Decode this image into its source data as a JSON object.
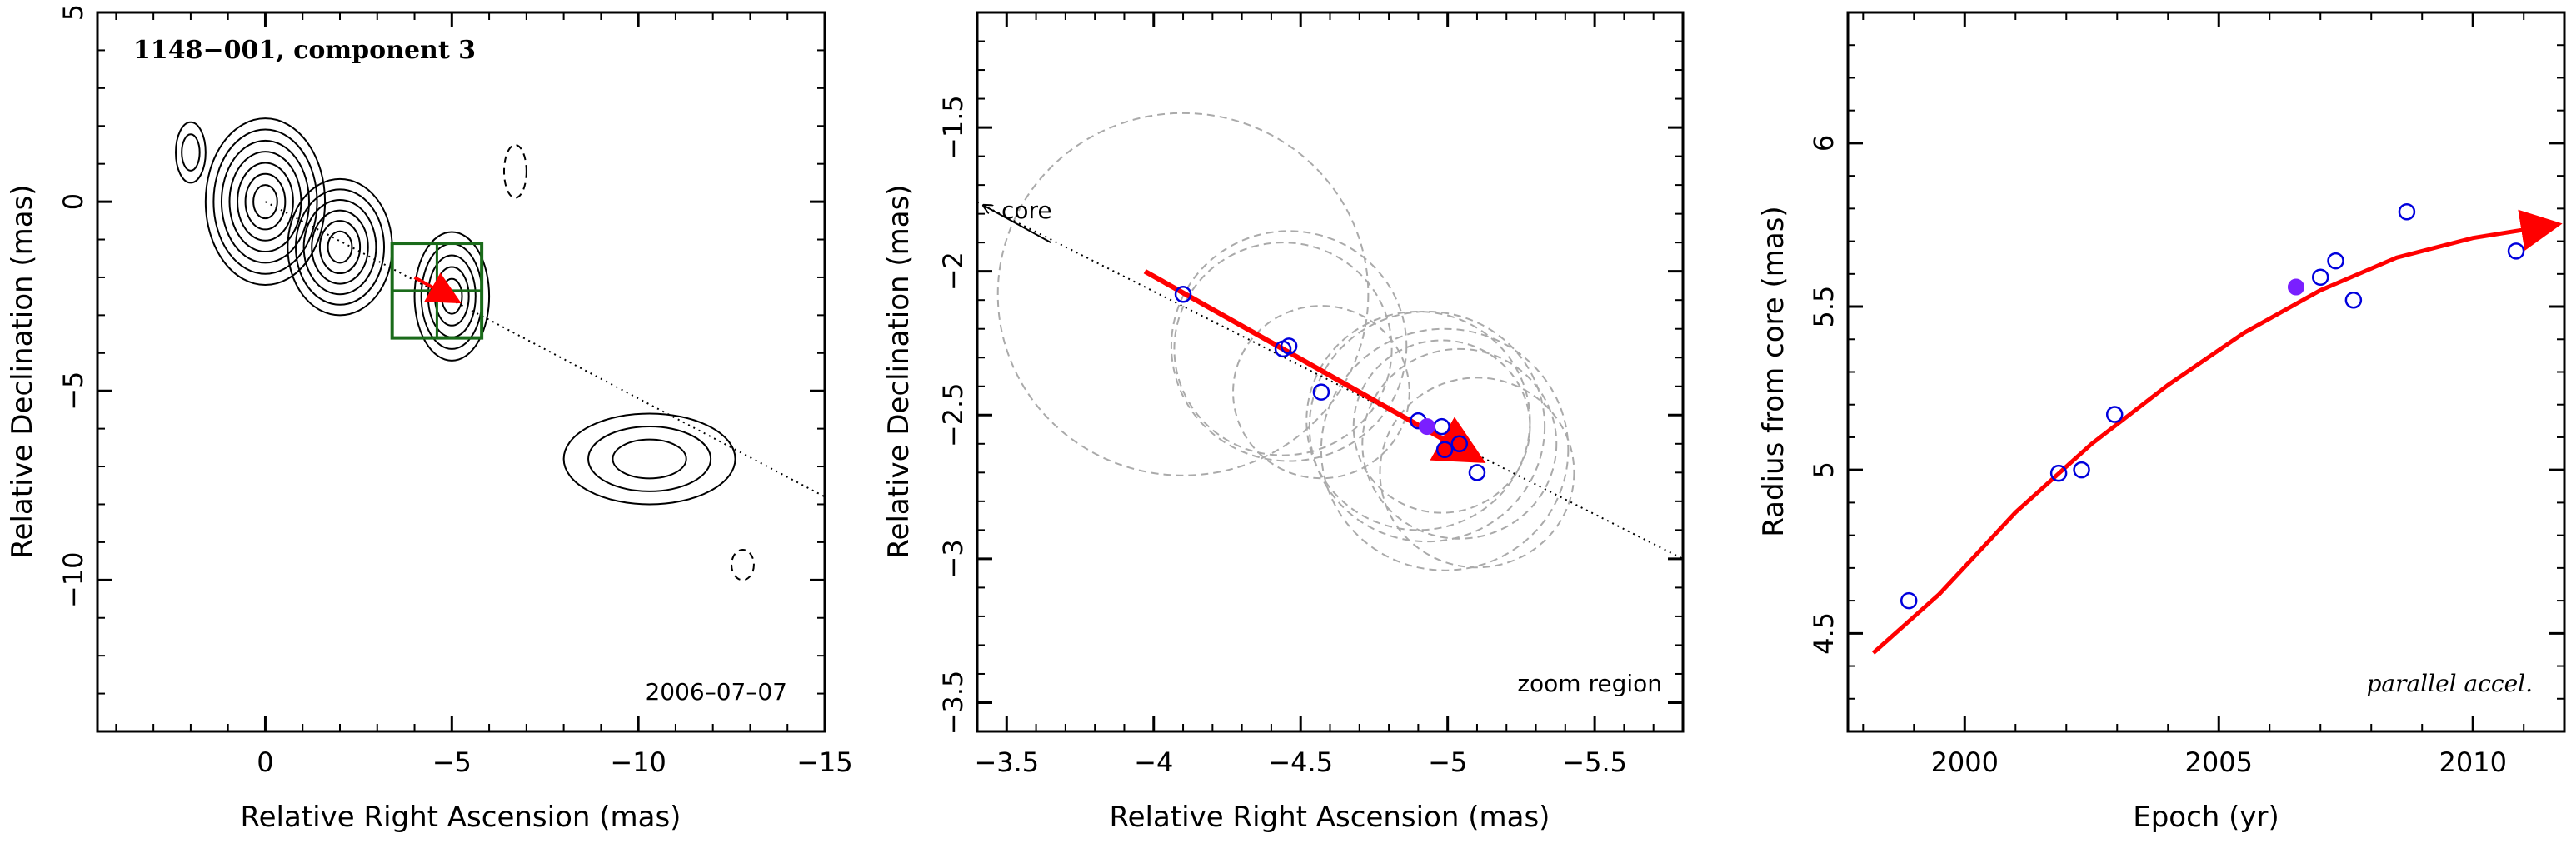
{
  "chart_data": [
    {
      "type": "contour",
      "title": "1148−001, component 3",
      "xlabel": "Relative Right Ascension (mas)",
      "ylabel": "Relative Declination (mas)",
      "xlim": [
        4.5,
        -15
      ],
      "ylim": [
        -14,
        5
      ],
      "xticks": [
        0,
        -5,
        -10,
        -15
      ],
      "yticks": [
        5,
        0,
        -5,
        -10
      ],
      "x_tick_labels": [
        "0",
        "−5",
        "−10",
        "−15"
      ],
      "y_tick_labels": [
        "5",
        "0",
        "−5",
        "−10"
      ],
      "annotations": [
        "2006–07–07"
      ],
      "contour_color": "#000000",
      "box_color": "#1a6b1a",
      "arrow_color": "#ff0000",
      "components": [
        {
          "x": 0,
          "y": 0,
          "rx": 1.6,
          "ry": 2.2,
          "levels": 7
        },
        {
          "x": -2,
          "y": -1.2,
          "rx": 1.4,
          "ry": 1.8,
          "levels": 6
        },
        {
          "x": -5,
          "y": -2.5,
          "rx": 1.0,
          "ry": 1.7,
          "levels": 5
        },
        {
          "x": 2.0,
          "y": 1.3,
          "rx": 0.4,
          "ry": 0.8,
          "levels": 2
        },
        {
          "x": -10.3,
          "y": -6.8,
          "rx": 2.3,
          "ry": 1.2,
          "levels": 3
        }
      ],
      "negative_contours": [
        {
          "x": -6.7,
          "y": 0.8,
          "rx": 0.3,
          "ry": 0.7
        },
        {
          "x": -12.8,
          "y": -9.6,
          "rx": 0.3,
          "ry": 0.4
        }
      ],
      "jet_direction": {
        "x1": 0,
        "y1": 0,
        "x2": -15,
        "y2": -7.8
      },
      "box": {
        "x": [
          -3.4,
          -5.8
        ],
        "y": [
          -1.1,
          -3.6
        ]
      },
      "motion_arrow": {
        "x1": -4,
        "y1": -2.0,
        "x2": -5.1,
        "y2": -2.6
      }
    },
    {
      "type": "scatter",
      "title": "",
      "xlabel": "Relative Right Ascension (mas)",
      "ylabel": "Relative Declination (mas)",
      "xlim": [
        -3.4,
        -5.8
      ],
      "ylim": [
        -3.6,
        -1.1
      ],
      "xticks": [
        -3.5,
        -4,
        -4.5,
        -5,
        -5.5
      ],
      "yticks": [
        -1.5,
        -2,
        -2.5,
        -3,
        -3.5
      ],
      "x_tick_labels": [
        "−3.5",
        "−4",
        "−4.5",
        "−5",
        "−5.5"
      ],
      "y_tick_labels": [
        "−1.5",
        "−2",
        "−2.5",
        "−3",
        "−3.5"
      ],
      "annotations": [
        "core",
        "zoom region"
      ],
      "point_color": "#0000dd",
      "highlight_color": "#7a1fff",
      "circle_color": "#aaaaaa",
      "arrow_color": "#ff0000",
      "points": [
        {
          "x": -4.1,
          "y": -2.08
        },
        {
          "x": -4.44,
          "y": -2.27
        },
        {
          "x": -4.46,
          "y": -2.26
        },
        {
          "x": -4.57,
          "y": -2.42
        },
        {
          "x": -4.9,
          "y": -2.52
        },
        {
          "x": -4.98,
          "y": -2.54
        },
        {
          "x": -4.99,
          "y": -2.62
        },
        {
          "x": -5.04,
          "y": -2.6
        },
        {
          "x": -5.1,
          "y": -2.7
        }
      ],
      "highlight_point": {
        "x": -4.93,
        "y": -2.54
      },
      "error_circles": [
        {
          "x": -4.1,
          "y": -2.08,
          "r": 0.63
        },
        {
          "x": -4.44,
          "y": -2.27,
          "r": 0.37
        },
        {
          "x": -4.46,
          "y": -2.26,
          "r": 0.4
        },
        {
          "x": -4.57,
          "y": -2.42,
          "r": 0.3
        },
        {
          "x": -4.9,
          "y": -2.52,
          "r": 0.38
        },
        {
          "x": -4.93,
          "y": -2.54,
          "r": 0.4
        },
        {
          "x": -4.98,
          "y": -2.54,
          "r": 0.3
        },
        {
          "x": -4.99,
          "y": -2.62,
          "r": 0.42
        },
        {
          "x": -5.04,
          "y": -2.6,
          "r": 0.33
        },
        {
          "x": -5.1,
          "y": -2.7,
          "r": 0.33
        }
      ],
      "jet_line": {
        "x1": -3.4,
        "y1": -1.76,
        "x2": -5.8,
        "y2": -3.0
      },
      "core_arrow": {
        "x1": -3.65,
        "y1": -1.9,
        "x2": -3.4,
        "y2": -1.76
      },
      "motion_arrow": {
        "x1": -3.97,
        "y1": -2.0,
        "x2": -5.1,
        "y2": -2.65
      }
    },
    {
      "type": "scatter",
      "title": "",
      "xlabel": "Epoch (yr)",
      "ylabel": "Radius from core (mas)",
      "xlim": [
        1997.7,
        2011.8
      ],
      "ylim": [
        4.2,
        6.4
      ],
      "xticks": [
        2000,
        2005,
        2010
      ],
      "yticks": [
        4.5,
        5,
        5.5,
        6
      ],
      "x_tick_labels": [
        "2000",
        "2005",
        "2010"
      ],
      "y_tick_labels": [
        "4.5",
        "5",
        "5.5",
        "6"
      ],
      "annotations": [
        "parallel accel."
      ],
      "point_color": "#0000dd",
      "highlight_color": "#7a1fff",
      "curve_color": "#ff0000",
      "points": [
        {
          "x": 1998.9,
          "y": 4.6
        },
        {
          "x": 2001.85,
          "y": 4.99
        },
        {
          "x": 2002.3,
          "y": 5.0
        },
        {
          "x": 2002.95,
          "y": 5.17
        },
        {
          "x": 2007.0,
          "y": 5.59
        },
        {
          "x": 2007.3,
          "y": 5.64
        },
        {
          "x": 2007.65,
          "y": 5.52
        },
        {
          "x": 2008.7,
          "y": 5.79
        },
        {
          "x": 2010.85,
          "y": 5.67
        }
      ],
      "highlight_point": {
        "x": 2006.52,
        "y": 5.56
      },
      "fit_curve": [
        {
          "x": 1998.2,
          "y": 4.44
        },
        {
          "x": 1999.5,
          "y": 4.62
        },
        {
          "x": 2001.0,
          "y": 4.87
        },
        {
          "x": 2002.5,
          "y": 5.08
        },
        {
          "x": 2004.0,
          "y": 5.26
        },
        {
          "x": 2005.5,
          "y": 5.42
        },
        {
          "x": 2007.0,
          "y": 5.55
        },
        {
          "x": 2008.5,
          "y": 5.65
        },
        {
          "x": 2010.0,
          "y": 5.71
        },
        {
          "x": 2011.6,
          "y": 5.75
        }
      ]
    }
  ]
}
